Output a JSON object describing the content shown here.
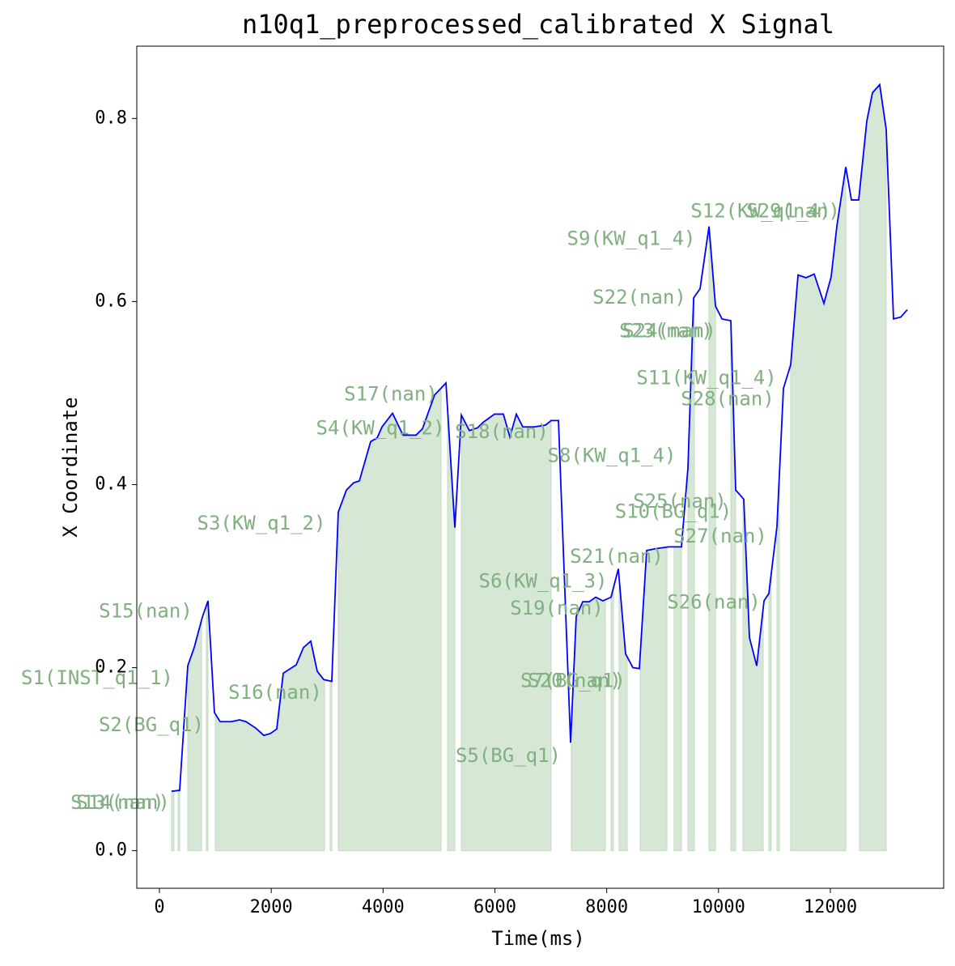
{
  "chart_data": {
    "type": "line",
    "title": "n10q1_preprocessed_calibrated X Signal",
    "x_label": "Time(ms)",
    "y_label": "X Coordinate",
    "color": "#0000ff",
    "fill_color": "#d6e7d6",
    "x": [
      217,
      362,
      507,
      622,
      767,
      869,
      984,
      1086,
      1288,
      1433,
      1549,
      1722,
      1867,
      1983,
      2099,
      2215,
      2446,
      2577,
      2707,
      2823,
      2939,
      3083,
      3199,
      3344,
      3474,
      3576,
      3778,
      3894,
      3981,
      4169,
      4357,
      4473,
      4589,
      4705,
      4922,
      5125,
      5284,
      5400,
      5544,
      5689,
      5790,
      5993,
      6152,
      6268,
      6384,
      6500,
      6702,
      6905,
      7006,
      7137,
      7354,
      7455,
      7571,
      7687,
      7803,
      7933,
      8078,
      8208,
      8338,
      8469,
      8584,
      8715,
      8874,
      9105,
      9206,
      9337,
      9453,
      9555,
      9670,
      9830,
      9946,
      10062,
      10220,
      10307,
      10452,
      10553,
      10683,
      10814,
      10900,
      11045,
      11161,
      11291,
      11422,
      11566,
      11711,
      11885,
      12015,
      12116,
      12276,
      12377,
      12507,
      12652,
      12753,
      12883,
      12999,
      13130,
      13260,
      13376
    ],
    "values": [
      0.065,
      0.066,
      0.202,
      0.222,
      0.255,
      0.273,
      0.151,
      0.141,
      0.141,
      0.143,
      0.141,
      0.134,
      0.126,
      0.128,
      0.133,
      0.194,
      0.203,
      0.222,
      0.229,
      0.196,
      0.187,
      0.185,
      0.37,
      0.394,
      0.402,
      0.404,
      0.447,
      0.451,
      0.463,
      0.478,
      0.454,
      0.454,
      0.454,
      0.461,
      0.498,
      0.511,
      0.353,
      0.476,
      0.459,
      0.462,
      0.468,
      0.477,
      0.477,
      0.452,
      0.477,
      0.463,
      0.463,
      0.465,
      0.47,
      0.47,
      0.118,
      0.256,
      0.272,
      0.272,
      0.277,
      0.273,
      0.277,
      0.308,
      0.215,
      0.2,
      0.199,
      0.328,
      0.33,
      0.332,
      0.332,
      0.332,
      0.418,
      0.604,
      0.614,
      0.682,
      0.595,
      0.581,
      0.579,
      0.394,
      0.384,
      0.233,
      0.202,
      0.273,
      0.281,
      0.354,
      0.505,
      0.531,
      0.629,
      0.626,
      0.63,
      0.598,
      0.627,
      0.682,
      0.747,
      0.711,
      0.711,
      0.797,
      0.828,
      0.837,
      0.788,
      0.581,
      0.583,
      0.591
    ],
    "segments": [
      {
        "start": 217,
        "end": 260
      },
      {
        "start": 333,
        "end": 362
      },
      {
        "start": 507,
        "end": 753
      },
      {
        "start": 840,
        "end": 869
      },
      {
        "start": 999,
        "end": 2953
      },
      {
        "start": 3054,
        "end": 3083
      },
      {
        "start": 3199,
        "end": 5038
      },
      {
        "start": 5154,
        "end": 5284
      },
      {
        "start": 5400,
        "end": 7006
      },
      {
        "start": 7368,
        "end": 7976
      },
      {
        "start": 8078,
        "end": 8121
      },
      {
        "start": 8222,
        "end": 8367
      },
      {
        "start": 8599,
        "end": 9077
      },
      {
        "start": 9206,
        "end": 9337
      },
      {
        "start": 9453,
        "end": 9569
      },
      {
        "start": 9830,
        "end": 9946
      },
      {
        "start": 10220,
        "end": 10307
      },
      {
        "start": 10437,
        "end": 10799
      },
      {
        "start": 10900,
        "end": 10943
      },
      {
        "start": 11045,
        "end": 11088
      },
      {
        "start": 11291,
        "end": 12276
      },
      {
        "start": 12521,
        "end": 12999
      }
    ],
    "annotations": [
      {
        "text": "S1(INST_q1_1)",
        "x": -1115,
        "y": 0.188
      },
      {
        "text": "S2(BG_q1)",
        "x": -145,
        "y": 0.137
      },
      {
        "text": "S13(nan)",
        "x": -753,
        "y": 0.052
      },
      {
        "text": "S14(nan)",
        "x": -651,
        "y": 0.052
      },
      {
        "text": "S15(nan)",
        "x": -246,
        "y": 0.261
      },
      {
        "text": "S16(nan)",
        "x": 2070,
        "y": 0.172
      },
      {
        "text": "S3(KW_q1_2)",
        "x": 1824,
        "y": 0.357
      },
      {
        "text": "S4(KW_q1_2)",
        "x": 3952,
        "y": 0.461
      },
      {
        "text": "S17(nan)",
        "x": 4140,
        "y": 0.498
      },
      {
        "text": "S18(nan)",
        "x": 6123,
        "y": 0.457
      },
      {
        "text": "S8(KW_q1_4)",
        "x": 8092,
        "y": 0.431
      },
      {
        "text": "S5(BG_q1)",
        "x": 6239,
        "y": 0.103
      },
      {
        "text": "S6(KW_q1_3)",
        "x": 6862,
        "y": 0.294
      },
      {
        "text": "S19(nan)",
        "x": 7108,
        "y": 0.264
      },
      {
        "text": "S21(nan)",
        "x": 8179,
        "y": 0.321
      },
      {
        "text": "S20(nan)",
        "x": 7426,
        "y": 0.185
      },
      {
        "text": "S7(BG_q1)",
        "x": 7397,
        "y": 0.185
      },
      {
        "text": "S22(nan)",
        "x": 8584,
        "y": 0.604
      },
      {
        "text": "S9(KW_q1_4)",
        "x": 8440,
        "y": 0.668
      },
      {
        "text": "S23(nan)",
        "x": 9062,
        "y": 0.567
      },
      {
        "text": "S24(nan)",
        "x": 9120,
        "y": 0.567
      },
      {
        "text": "S11(KW_q1_4)",
        "x": 9786,
        "y": 0.516
      },
      {
        "text": "S28(nan)",
        "x": 10162,
        "y": 0.493
      },
      {
        "text": "S25(nan)",
        "x": 9308,
        "y": 0.381
      },
      {
        "text": "S10(BG_q1)",
        "x": 9192,
        "y": 0.37
      },
      {
        "text": "S27(nan)",
        "x": 10032,
        "y": 0.343
      },
      {
        "text": "S26(nan)",
        "x": 9916,
        "y": 0.271
      },
      {
        "text": "S12(KW_q1_4)",
        "x": 10756,
        "y": 0.698
      },
      {
        "text": "S29(nan)",
        "x": 11335,
        "y": 0.698
      }
    ],
    "annotation_color": "#80b080",
    "xlim": [
      -405,
      14027
    ],
    "ylim": [
      -0.041,
      0.879
    ],
    "xticks": [
      0,
      2000,
      4000,
      6000,
      8000,
      10000,
      12000
    ],
    "yticks": [
      {
        "value": 0,
        "label": "0.0"
      },
      0.2,
      0.4,
      0.6,
      0.8
    ]
  }
}
